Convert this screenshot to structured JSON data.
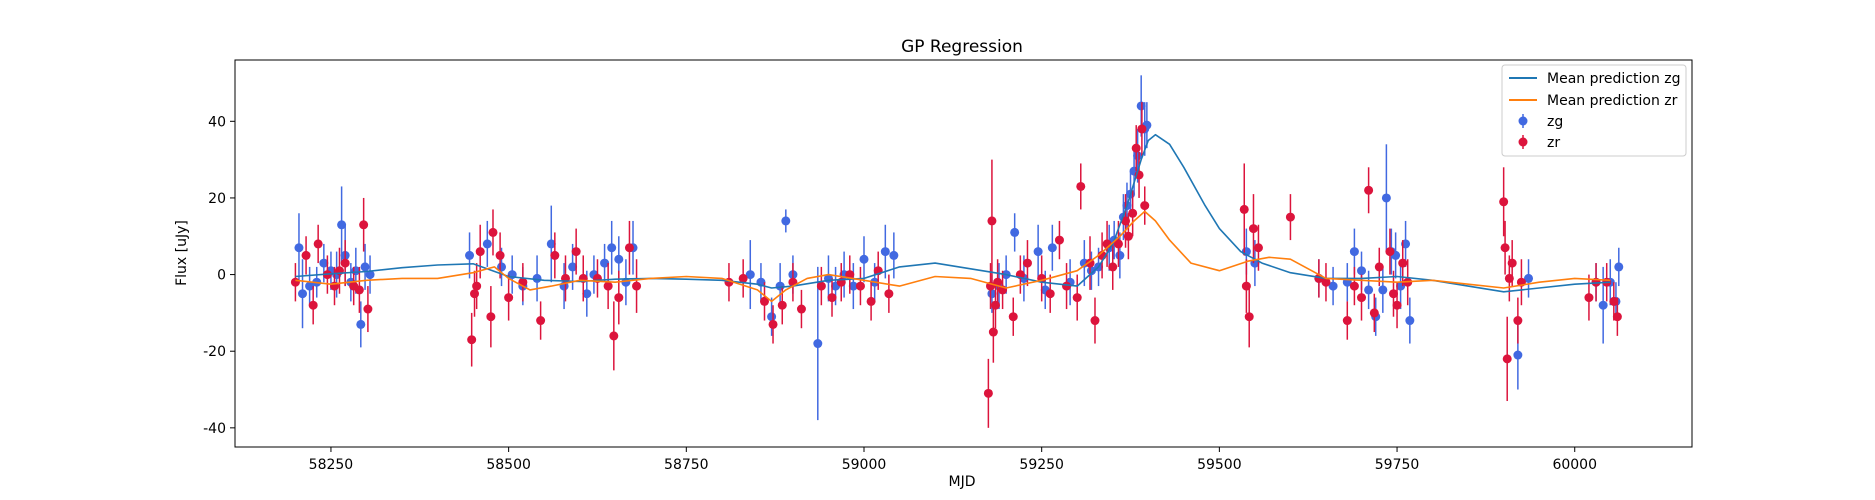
{
  "chart_data": {
    "type": "scatter",
    "title": "GP Regression",
    "xlabel": "MJD",
    "ylabel": "Flux [uJy]",
    "xlim": [
      58115,
      60165
    ],
    "ylim": [
      -45,
      56
    ],
    "xticks": [
      58250,
      58500,
      58750,
      59000,
      59250,
      59500,
      59750,
      60000
    ],
    "yticks": [
      -40,
      -20,
      0,
      20,
      40
    ],
    "legend_position": "upper right",
    "colors": {
      "zg_line": "#1f77b4",
      "zr_line": "#ff7f0e",
      "zg_points": "#4169e1",
      "zr_points": "#dc143c"
    },
    "lines": [
      {
        "name": "Mean prediction zg",
        "color": "#1f77b4",
        "x": [
          58200,
          58250,
          58300,
          58350,
          58400,
          58450,
          58500,
          58550,
          58600,
          58650,
          58700,
          58750,
          58800,
          58850,
          58870,
          58900,
          58950,
          59000,
          59050,
          59100,
          59150,
          59200,
          59250,
          59300,
          59330,
          59350,
          59370,
          59390,
          59400,
          59410,
          59430,
          59450,
          59480,
          59500,
          59530,
          59560,
          59600,
          59650,
          59700,
          59750,
          59800,
          59850,
          59900,
          59950,
          60000,
          60050
        ],
        "y": [
          -0.5,
          0.2,
          0.8,
          1.8,
          2.5,
          2.8,
          -0.5,
          -1.5,
          -1.8,
          -1.2,
          -1.0,
          -1.2,
          -1.5,
          -2.5,
          -3.5,
          -3.0,
          -1.5,
          -1.0,
          2.0,
          3.0,
          1.5,
          0.0,
          -2.0,
          -3.0,
          2.0,
          8.0,
          18.0,
          30.0,
          35.0,
          36.5,
          34.0,
          28.0,
          18.0,
          12.0,
          6.0,
          3.0,
          0.5,
          -1.0,
          -1.0,
          -0.5,
          -1.5,
          -3.0,
          -4.5,
          -3.5,
          -2.5,
          -2.0
        ]
      },
      {
        "name": "Mean prediction zr",
        "color": "#ff7f0e",
        "x": [
          58200,
          58250,
          58300,
          58350,
          58400,
          58450,
          58480,
          58500,
          58530,
          58560,
          58600,
          58650,
          58700,
          58750,
          58800,
          58850,
          58870,
          58890,
          58920,
          58950,
          59000,
          59050,
          59100,
          59150,
          59200,
          59250,
          59300,
          59330,
          59360,
          59380,
          59395,
          59410,
          59430,
          59460,
          59500,
          59540,
          59570,
          59600,
          59650,
          59700,
          59750,
          59800,
          59850,
          59900,
          59950,
          60000,
          60050
        ],
        "y": [
          -1.5,
          -2.5,
          -1.5,
          -1.0,
          -1.0,
          0.5,
          2.0,
          -1.0,
          -4.0,
          -3.0,
          -1.5,
          -2.0,
          -1.0,
          -0.5,
          -1.0,
          -4.0,
          -7.0,
          -4.0,
          -1.0,
          0.0,
          -1.5,
          -3.0,
          -0.5,
          -1.0,
          -3.5,
          -1.5,
          1.0,
          5.0,
          10.0,
          14.0,
          16.5,
          14.0,
          9.0,
          3.0,
          1.0,
          3.5,
          4.5,
          4.0,
          -1.0,
          -1.5,
          -2.0,
          -1.5,
          -2.5,
          -3.5,
          -2.0,
          -1.0,
          -1.5
        ]
      }
    ],
    "series": [
      {
        "name": "zg",
        "color": "#4169e1",
        "x": [
          58205,
          58210,
          58220,
          58230,
          58240,
          58250,
          58258,
          58265,
          58270,
          58278,
          58285,
          58292,
          58298,
          58305,
          58445,
          58470,
          58490,
          58505,
          58520,
          58540,
          58560,
          58578,
          58590,
          58610,
          58620,
          58635,
          58645,
          58655,
          58665,
          58675,
          58840,
          58855,
          58870,
          58882,
          58890,
          58900,
          58935,
          58950,
          58960,
          58972,
          58985,
          59000,
          59015,
          59030,
          59042,
          59180,
          59190,
          59200,
          59212,
          59225,
          59245,
          59255,
          59265,
          59290,
          59310,
          59320,
          59330,
          59345,
          59352,
          59360,
          59365,
          59370,
          59375,
          59380,
          59385,
          59390,
          59395,
          59398,
          59538,
          59550,
          59640,
          59660,
          59680,
          59690,
          59700,
          59710,
          59720,
          59730,
          59735,
          59742,
          59748,
          59755,
          59762,
          59768,
          59920,
          59935,
          60030,
          60040,
          60050,
          60058,
          60062
        ],
        "y": [
          7,
          -5,
          -3,
          -2,
          3,
          1,
          0,
          13,
          5,
          -2,
          1,
          -13,
          2,
          0,
          5,
          8,
          2,
          0,
          -3,
          -1,
          8,
          -3,
          2,
          -5,
          0,
          3,
          7,
          4,
          -2,
          7,
          0,
          -2,
          -11,
          -3,
          14,
          0,
          -18,
          -1,
          -3,
          0,
          -3,
          4,
          -2,
          6,
          5,
          -5,
          -3,
          0,
          11,
          -1,
          6,
          -4,
          7,
          -2,
          3,
          1,
          2,
          7,
          9,
          5,
          15,
          18,
          21,
          27,
          31,
          44,
          38,
          39,
          6,
          3,
          -1,
          -3,
          -2,
          6,
          1,
          -4,
          -11,
          -4,
          20,
          6,
          5,
          -3,
          8,
          -12,
          -21,
          -1,
          -2,
          -8,
          -2,
          -7,
          2
        ],
        "yerr": [
          9,
          9,
          5,
          4,
          5,
          5,
          6,
          10,
          8,
          5,
          6,
          6,
          6,
          5,
          6,
          6,
          5,
          5,
          5,
          6,
          10,
          6,
          6,
          6,
          5,
          5,
          7,
          6,
          6,
          7,
          9,
          5,
          5,
          6,
          3,
          5,
          20,
          6,
          5,
          6,
          6,
          6,
          5,
          7,
          6,
          5,
          6,
          5,
          5,
          6,
          7,
          5,
          6,
          6,
          6,
          5,
          5,
          6,
          5,
          6,
          6,
          6,
          6,
          6,
          7,
          8,
          7,
          6,
          6,
          6,
          5,
          5,
          5,
          6,
          5,
          5,
          5,
          6,
          14,
          6,
          6,
          6,
          6,
          6,
          9,
          5,
          5,
          10,
          6,
          5,
          5
        ]
      },
      {
        "name": "zr",
        "color": "#dc143c",
        "x": [
          58200,
          58215,
          58225,
          58232,
          58245,
          58255,
          58262,
          58270,
          58282,
          58290,
          58296,
          58302,
          58448,
          58452,
          58455,
          58460,
          58475,
          58478,
          58488,
          58500,
          58520,
          58545,
          58565,
          58580,
          58595,
          58605,
          58625,
          58640,
          58648,
          58655,
          58670,
          58680,
          58810,
          58830,
          58860,
          58872,
          58885,
          58900,
          58912,
          58940,
          58955,
          58968,
          58980,
          58995,
          59010,
          59020,
          59035,
          59175,
          59178,
          59180,
          59182,
          59185,
          59188,
          59195,
          59210,
          59220,
          59230,
          59250,
          59262,
          59275,
          59285,
          59300,
          59305,
          59318,
          59325,
          59335,
          59342,
          59350,
          59358,
          59368,
          59372,
          59378,
          59383,
          59387,
          59391,
          59395,
          59535,
          59538,
          59542,
          59548,
          59555,
          59600,
          59640,
          59650,
          59680,
          59690,
          59700,
          59710,
          59718,
          59725,
          59740,
          59745,
          59750,
          59758,
          59765,
          59900,
          59902,
          59905,
          59908,
          59912,
          59920,
          59925,
          60020,
          60030,
          60045,
          60055,
          60060
        ],
        "y": [
          -2,
          5,
          -8,
          8,
          0,
          -3,
          1,
          3,
          -3,
          -4,
          13,
          -9,
          -17,
          -5,
          -3,
          6,
          -11,
          11,
          5,
          -6,
          -2,
          -12,
          5,
          -1,
          6,
          -1,
          -1,
          -3,
          -16,
          -6,
          7,
          -3,
          -2,
          -1,
          -7,
          -13,
          -8,
          -2,
          -9,
          -3,
          -6,
          -2,
          0,
          -3,
          -7,
          1,
          -5,
          -31,
          -3,
          14,
          -15,
          -8,
          -2,
          -4,
          -11,
          0,
          3,
          -1,
          -5,
          9,
          -3,
          -6,
          23,
          3,
          -12,
          5,
          8,
          2,
          8,
          14,
          10,
          16,
          33,
          26,
          38,
          18,
          17,
          -3,
          -11,
          12,
          7,
          15,
          -1,
          -2,
          -12,
          -3,
          -6,
          22,
          -10,
          2,
          6,
          -5,
          -8,
          3,
          -2,
          19,
          7,
          -22,
          -1,
          3,
          -12,
          -2,
          -6,
          -2,
          -2,
          -7,
          -11
        ],
        "yerr": [
          5,
          5,
          5,
          5,
          5,
          5,
          6,
          6,
          5,
          6,
          7,
          6,
          7,
          6,
          6,
          7,
          8,
          6,
          6,
          6,
          5,
          5,
          6,
          6,
          6,
          6,
          5,
          6,
          9,
          7,
          7,
          7,
          5,
          5,
          5,
          5,
          5,
          5,
          5,
          5,
          5,
          5,
          5,
          5,
          5,
          5,
          5,
          9,
          6,
          16,
          8,
          6,
          6,
          5,
          5,
          5,
          6,
          6,
          5,
          5,
          6,
          6,
          6,
          7,
          6,
          6,
          6,
          6,
          6,
          7,
          6,
          6,
          6,
          6,
          7,
          5,
          12,
          7,
          8,
          9,
          6,
          6,
          5,
          5,
          5,
          5,
          6,
          6,
          5,
          5,
          6,
          6,
          6,
          6,
          6,
          9,
          7,
          11,
          6,
          6,
          6,
          6,
          6,
          5,
          5,
          5,
          5
        ]
      }
    ]
  }
}
